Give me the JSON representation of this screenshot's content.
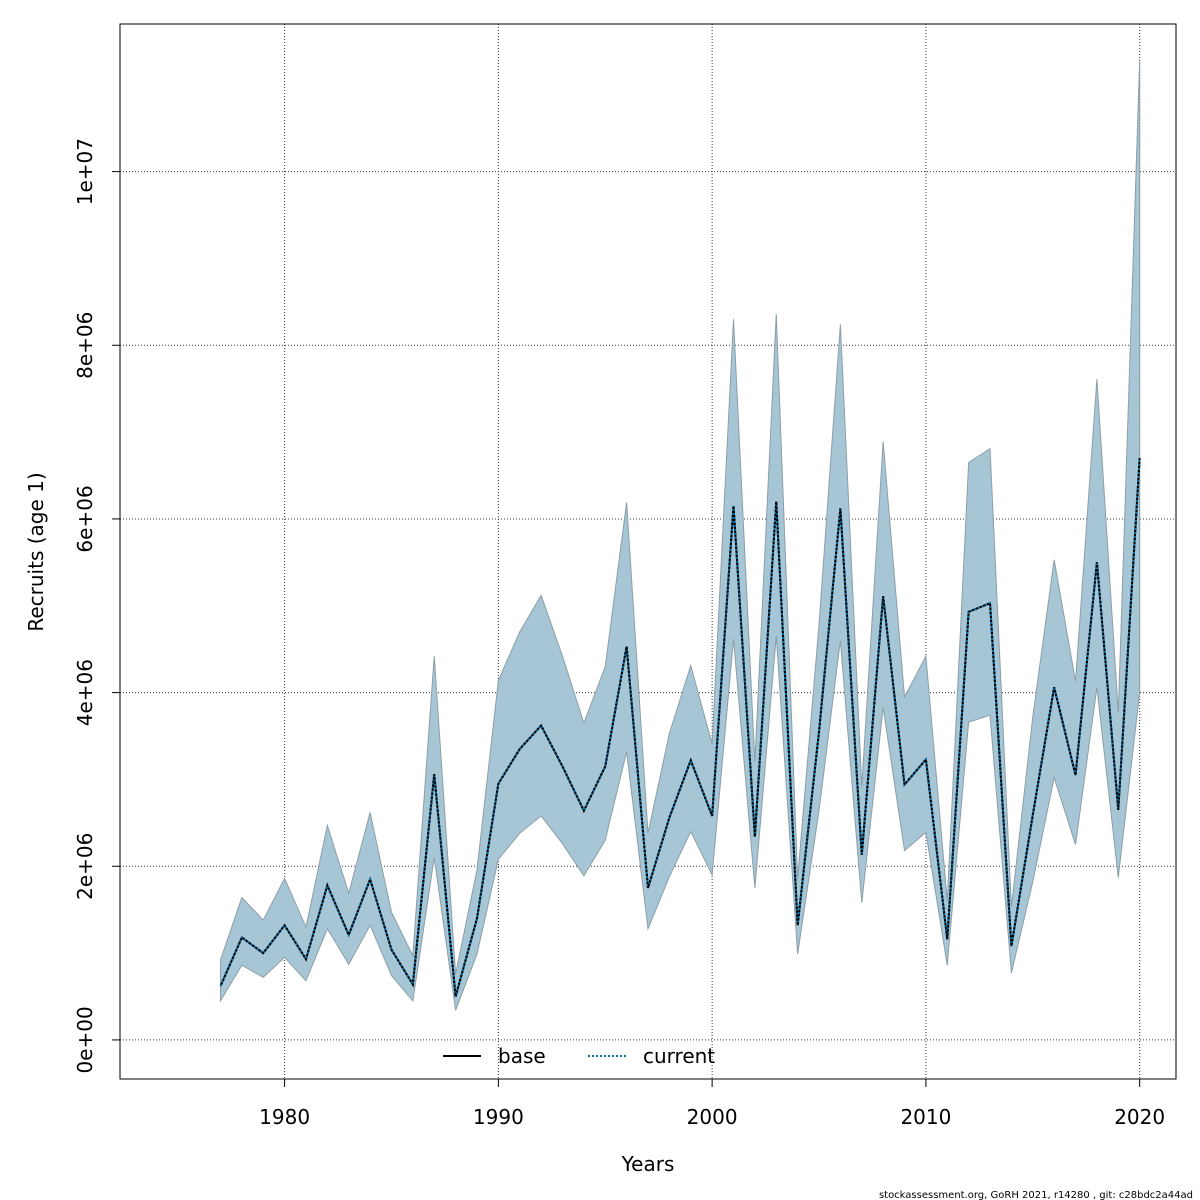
{
  "chart_data": {
    "type": "line",
    "xlabel": "Years",
    "ylabel": "Recruits (age 1)",
    "xlim": [
      1972.3,
      2021.7
    ],
    "ylim": [
      -450000,
      11700000
    ],
    "x_ticks": [
      1980,
      1990,
      2000,
      2010,
      2020
    ],
    "x_tick_labels": [
      "1980",
      "1990",
      "2000",
      "2010",
      "2020"
    ],
    "y_ticks": [
      0,
      2000000,
      4000000,
      6000000,
      8000000,
      10000000
    ],
    "y_tick_labels": [
      "0e+00",
      "2e+06",
      "4e+06",
      "6e+06",
      "8e+06",
      "1e+07"
    ],
    "grid": true,
    "legend_position": "bottom-center",
    "band_color": "#a6c6d6",
    "band_edge_color": "#8c9ea8",
    "x": [
      1977,
      1978,
      1979,
      1980,
      1981,
      1982,
      1983,
      1984,
      1985,
      1986,
      1987,
      1988,
      1989,
      1990,
      1991,
      1992,
      1993,
      1994,
      1995,
      1996,
      1997,
      1998,
      1999,
      2000,
      2001,
      2002,
      2003,
      2004,
      2005,
      2006,
      2007,
      2008,
      2009,
      2010,
      2011,
      2012,
      2013,
      2014,
      2015,
      2016,
      2017,
      2018,
      2019,
      2020
    ],
    "series": [
      {
        "name": "base",
        "color": "#000000",
        "dash": "solid",
        "values": [
          620000,
          1180000,
          1000000,
          1320000,
          930000,
          1780000,
          1210000,
          1850000,
          1040000,
          640000,
          3060000,
          500000,
          1400000,
          2950000,
          3350000,
          3620000,
          3150000,
          2640000,
          3150000,
          4530000,
          1750000,
          2560000,
          3220000,
          2580000,
          6150000,
          2340000,
          6200000,
          1320000,
          3550000,
          6120000,
          2130000,
          5110000,
          2940000,
          3230000,
          1160000,
          4930000,
          5030000,
          1080000,
          2590000,
          4060000,
          3050000,
          5500000,
          2650000,
          6700000
        ]
      },
      {
        "name": "current",
        "color": "#0b6fa4",
        "dash": "dotted",
        "values": [
          620000,
          1180000,
          1000000,
          1320000,
          930000,
          1780000,
          1210000,
          1850000,
          1040000,
          640000,
          3060000,
          500000,
          1400000,
          2950000,
          3350000,
          3620000,
          3150000,
          2640000,
          3150000,
          4530000,
          1750000,
          2560000,
          3220000,
          2580000,
          6150000,
          2340000,
          6200000,
          1320000,
          3550000,
          6120000,
          2130000,
          5110000,
          2940000,
          3230000,
          1160000,
          4930000,
          5030000,
          1080000,
          2590000,
          4060000,
          3050000,
          5500000,
          2650000,
          6700000
        ]
      }
    ],
    "interval": {
      "lower": [
        450000,
        860000,
        720000,
        950000,
        680000,
        1280000,
        870000,
        1320000,
        740000,
        450000,
        2100000,
        340000,
        990000,
        2080000,
        2380000,
        2580000,
        2260000,
        1890000,
        2300000,
        3320000,
        1280000,
        1880000,
        2400000,
        1900000,
        4620000,
        1750000,
        4650000,
        990000,
        2640000,
        4600000,
        1580000,
        3830000,
        2180000,
        2390000,
        860000,
        3660000,
        3740000,
        770000,
        1820000,
        3020000,
        2250000,
        4060000,
        1870000,
        4000000
      ],
      "upper": [
        920000,
        1640000,
        1380000,
        1860000,
        1300000,
        2470000,
        1690000,
        2620000,
        1470000,
        970000,
        4420000,
        760000,
        1960000,
        4140000,
        4700000,
        5120000,
        4420000,
        3650000,
        4300000,
        6190000,
        2380000,
        3530000,
        4310000,
        3410000,
        8300000,
        3200000,
        8360000,
        1860000,
        4780000,
        8240000,
        2920000,
        6890000,
        3950000,
        4420000,
        1600000,
        6650000,
        6810000,
        1530000,
        3720000,
        5530000,
        4130000,
        7610000,
        3770000,
        11270000
      ]
    }
  },
  "legend": {
    "entries": [
      {
        "label": "base",
        "color": "#000000",
        "dash": "solid"
      },
      {
        "label": "current",
        "color": "#0b6fa4",
        "dash": "dotted"
      }
    ]
  },
  "footer": {
    "text": "stockassessment.org, GoRH  2021, r14280 , git: c28bdc2a44ad"
  }
}
